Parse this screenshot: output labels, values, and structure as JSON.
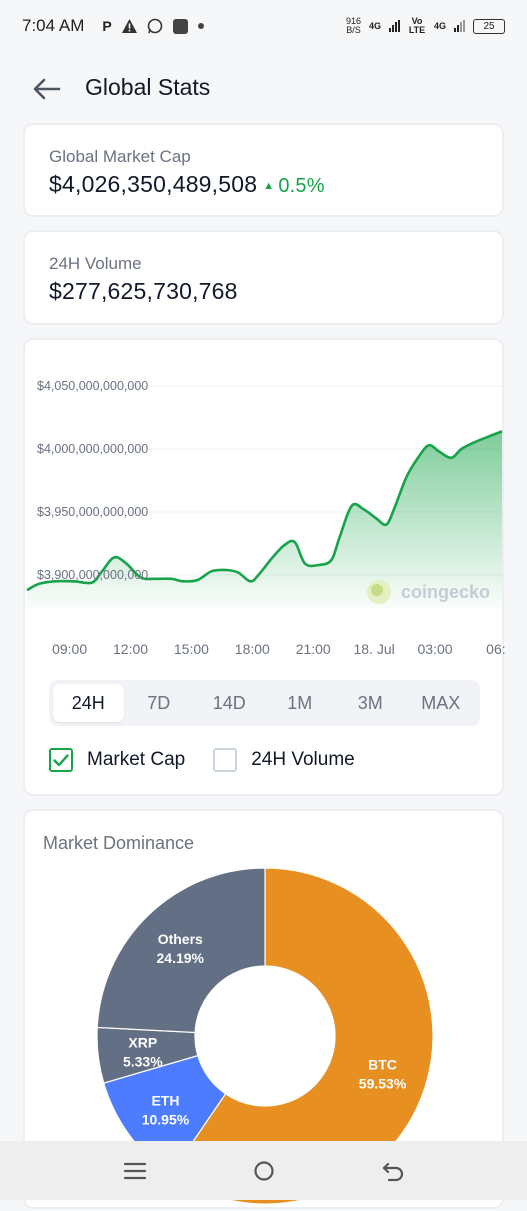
{
  "status_bar": {
    "time": "7:04 AM",
    "speed_value": "916",
    "speed_unit": "B/S",
    "network1": "4G",
    "network_volte": "Vo LTE",
    "network2": "4G",
    "battery": "25"
  },
  "header": {
    "title": "Global Stats"
  },
  "market_cap": {
    "label": "Global Market Cap",
    "value": "$4,026,350,489,508",
    "change": "0.5%",
    "change_color": "#16a34a"
  },
  "volume": {
    "label": "24H Volume",
    "value": "$277,625,730,768"
  },
  "chart": {
    "watermark": "coingecko",
    "ranges": [
      "24H",
      "7D",
      "14D",
      "1M",
      "3M",
      "MAX"
    ],
    "active_range": "24H",
    "toggles": [
      {
        "label": "Market Cap",
        "checked": true
      },
      {
        "label": "24H Volume",
        "checked": false
      }
    ]
  },
  "chart_data": {
    "type": "area",
    "ylabel": "",
    "xlabel": "",
    "y_tick_labels": [
      "$4,050,000,000,000",
      "$4,000,000,000,000",
      "$3,950,000,000,000",
      "$3,900,000,000,000"
    ],
    "y_ticks": [
      4050000000000,
      4000000000000,
      3950000000000,
      3900000000000
    ],
    "x_tick_labels": [
      "09:00",
      "12:00",
      "15:00",
      "18:00",
      "21:00",
      "18. Jul",
      "03:00",
      "06:"
    ],
    "x_ticks": [
      9,
      12,
      15,
      18,
      21,
      24,
      27,
      30
    ],
    "ylim": [
      3875000000000,
      4050000000000
    ],
    "grid": true,
    "line_color": "#16a34a",
    "series": [
      {
        "x": [
          6.9,
          7.5,
          8.3,
          9.2,
          10.1,
          10.6,
          11.2,
          11.8,
          12.5,
          13.2,
          14.0,
          14.6,
          15.3,
          16.0,
          16.7,
          17.3,
          17.9,
          18.3,
          19.0,
          19.6,
          20.1,
          20.6,
          21.3,
          21.9,
          22.3,
          22.9,
          23.5,
          24.1,
          24.6,
          25.0,
          25.6,
          26.2,
          26.7,
          27.2,
          27.8,
          28.3,
          28.9,
          29.5,
          30.3
        ],
        "values": [
          3888000000000,
          3893000000000,
          3895000000000,
          3895000000000,
          3894000000000,
          3903000000000,
          3914000000000,
          3909000000000,
          3898000000000,
          3897000000000,
          3897000000000,
          3895000000000,
          3896000000000,
          3903000000000,
          3904000000000,
          3902000000000,
          3895000000000,
          3900000000000,
          3914000000000,
          3924000000000,
          3926000000000,
          3909000000000,
          3908000000000,
          3912000000000,
          3930000000000,
          3955000000000,
          3952000000000,
          3945000000000,
          3940000000000,
          3953000000000,
          3978000000000,
          3994000000000,
          4003000000000,
          3998000000000,
          3993000000000,
          4000000000000,
          4005000000000,
          4009000000000,
          4014000000000
        ]
      }
    ]
  },
  "dominance": {
    "title": "Market Dominance",
    "slices": [
      {
        "name": "BTC",
        "value": 59.53,
        "label": "59.53%",
        "color": "#e88f22"
      },
      {
        "name": "ETH",
        "value": 10.95,
        "label": "10.95%",
        "color": "#4d7cfe"
      },
      {
        "name": "XRP",
        "value": 5.33,
        "label": "5.33%",
        "color": "#636f84"
      },
      {
        "name": "Others",
        "value": 24.19,
        "label": "24.19%",
        "color": "#636f84"
      }
    ]
  },
  "navbar": {
    "icons": [
      "menu-icon",
      "home-icon",
      "back-icon"
    ]
  }
}
